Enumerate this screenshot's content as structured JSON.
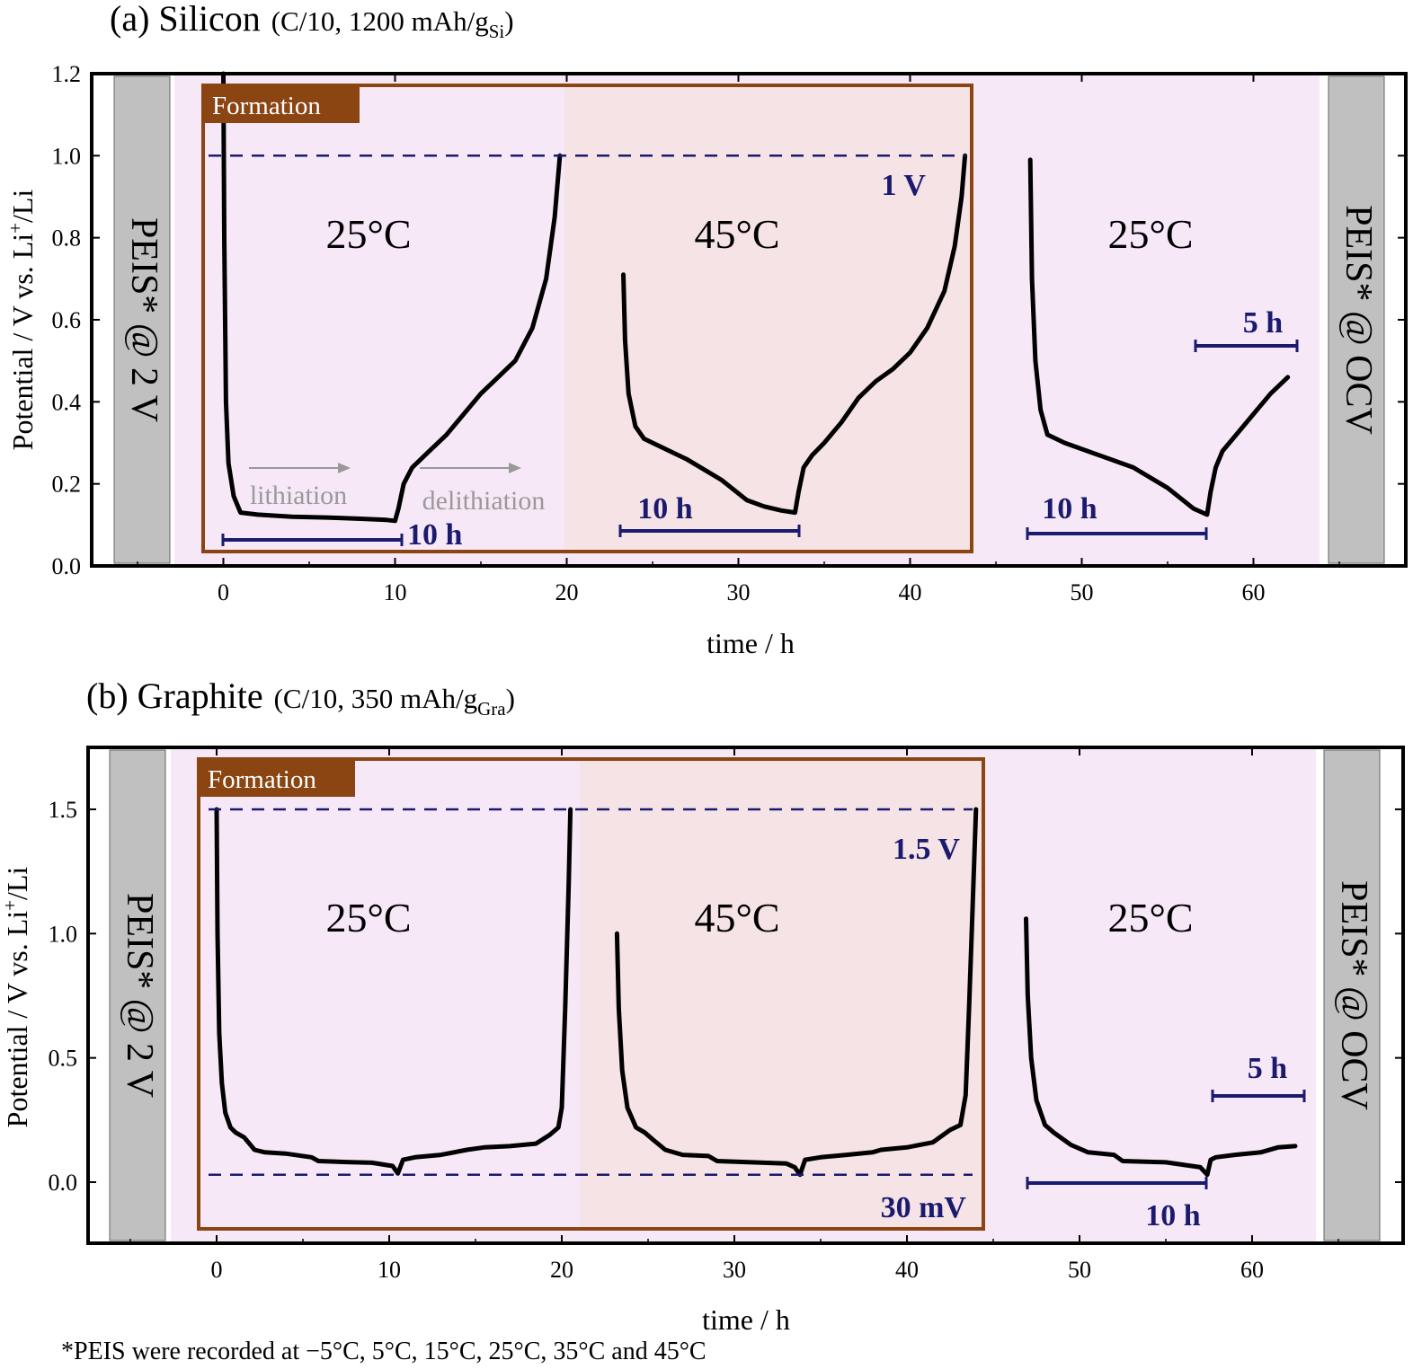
{
  "colors": {
    "pink_bg": "#f7e8f8",
    "formation_45_bg": "#f5e3e6",
    "gray_box": "#c0c0c0",
    "formation_frame": "#8b4513",
    "navy": "#1a1a6e",
    "curve": "#000000",
    "arrow": "#999999"
  },
  "footnote": "*PEIS were recorded at −5°C, 5°C, 15°C, 25°C, 35°C and 45°C",
  "panels": [
    {
      "title_main": "(a) Silicon",
      "title_sub_pre": "(C/10, 1200 mAh/g",
      "title_sub_sub": "Si",
      "title_sub_post": ")",
      "ylabel_pre": "Potential / V vs. Li",
      "ylabel_sup": "+",
      "ylabel_post": "/Li",
      "xlabel": "time / h",
      "xticks": [
        "0",
        "10",
        "20",
        "30",
        "40",
        "50",
        "60"
      ],
      "yticks": [
        "0.0",
        "0.2",
        "0.4",
        "0.6",
        "0.8",
        "1.0",
        "1.2"
      ],
      "peis_left": "PEIS* @ 2 V",
      "peis_right": "PEIS* @ OCV",
      "formation_label": "Formation",
      "temps": [
        "25°C",
        "45°C",
        "25°C"
      ],
      "limit_labels": [
        "1 V"
      ],
      "duration_labels": [
        "10 h",
        "10 h",
        "10 h",
        "5 h"
      ],
      "arrow_labels": [
        "lithiation",
        "delithiation"
      ]
    },
    {
      "title_main": "(b) Graphite",
      "title_sub_pre": "(C/10, 350 mAh/g",
      "title_sub_sub": "Gra",
      "title_sub_post": ")",
      "ylabel_pre": "Potential / V vs. Li",
      "ylabel_sup": "+",
      "ylabel_post": "/Li",
      "xlabel": "time / h",
      "xticks": [
        "0",
        "10",
        "20",
        "30",
        "40",
        "50",
        "60"
      ],
      "yticks": [
        "0.0",
        "0.5",
        "1.0",
        "1.5"
      ],
      "peis_left": "PEIS* @ 2 V",
      "peis_right": "PEIS* @ OCV",
      "formation_label": "Formation",
      "temps": [
        "25°C",
        "45°C",
        "25°C"
      ],
      "limit_labels": [
        "1.5 V",
        "30 mV"
      ],
      "duration_labels": [
        "10 h",
        "5 h"
      ]
    }
  ],
  "chart_data": [
    {
      "type": "line",
      "title": "(a) Silicon (C/10, 1200 mAh/gSi)",
      "xlabel": "time / h",
      "ylabel": "Potential / V vs. Li+/Li",
      "xlim": [
        -7,
        69
      ],
      "ylim": [
        0.0,
        1.2
      ],
      "cutoff_V": 1.0,
      "series": [
        {
          "segment": "25°C formation",
          "x": [
            0,
            0.05,
            0.15,
            0.3,
            0.6,
            1.0,
            2,
            4,
            6,
            8,
            9.5,
            10.0,
            10.2,
            10.5,
            11,
            12,
            13,
            14,
            15,
            16,
            17,
            18,
            18.8,
            19.3,
            19.6
          ],
          "y": [
            1.2,
            0.8,
            0.4,
            0.25,
            0.17,
            0.13,
            0.125,
            0.12,
            0.118,
            0.115,
            0.112,
            0.11,
            0.14,
            0.2,
            0.24,
            0.28,
            0.32,
            0.37,
            0.42,
            0.46,
            0.5,
            0.58,
            0.7,
            0.85,
            1.0
          ]
        },
        {
          "segment": "45°C formation",
          "x": [
            23.3,
            23.4,
            23.6,
            24,
            24.5,
            25,
            27,
            29,
            30.5,
            31.5,
            32.5,
            33.3,
            33.5,
            33.8,
            34.3,
            35,
            36,
            37,
            38,
            39,
            40,
            41,
            42,
            42.6,
            43.0,
            43.2
          ],
          "y": [
            0.71,
            0.55,
            0.42,
            0.34,
            0.31,
            0.3,
            0.26,
            0.21,
            0.16,
            0.145,
            0.135,
            0.13,
            0.18,
            0.24,
            0.27,
            0.3,
            0.35,
            0.41,
            0.45,
            0.48,
            0.52,
            0.58,
            0.67,
            0.78,
            0.9,
            1.0
          ]
        },
        {
          "segment": "25°C",
          "x": [
            47.0,
            47.1,
            47.3,
            47.6,
            48,
            49,
            51,
            53,
            55,
            56.5,
            57.3,
            57.5,
            57.8,
            58.2,
            59,
            60,
            61,
            62
          ],
          "y": [
            0.99,
            0.7,
            0.5,
            0.38,
            0.32,
            0.3,
            0.27,
            0.24,
            0.19,
            0.14,
            0.125,
            0.18,
            0.24,
            0.28,
            0.32,
            0.37,
            0.42,
            0.46
          ]
        }
      ]
    },
    {
      "type": "line",
      "title": "(b) Graphite (C/10, 350 mAh/gGra)",
      "xlabel": "time / h",
      "ylabel": "Potential / V vs. Li+/Li",
      "xlim": [
        -7,
        69
      ],
      "ylim": [
        -0.25,
        1.75
      ],
      "cutoffs_V": [
        1.5,
        0.03
      ],
      "series": [
        {
          "segment": "25°C formation",
          "x": [
            0,
            0.05,
            0.15,
            0.3,
            0.5,
            0.8,
            1.1,
            1.6,
            2.2,
            2.8,
            4,
            5.5,
            5.9,
            7,
            9,
            10.2,
            10.5,
            10.8,
            11.5,
            13,
            14.5,
            15.5,
            17,
            18.5,
            19.3,
            19.8,
            20.0,
            20.2,
            20.4,
            20.5
          ],
          "y": [
            1.5,
            1.0,
            0.6,
            0.4,
            0.28,
            0.22,
            0.2,
            0.18,
            0.13,
            0.12,
            0.115,
            0.1,
            0.085,
            0.082,
            0.078,
            0.065,
            0.035,
            0.09,
            0.1,
            0.11,
            0.13,
            0.14,
            0.145,
            0.155,
            0.19,
            0.22,
            0.3,
            0.7,
            1.2,
            1.5
          ]
        },
        {
          "segment": "45°C formation",
          "x": [
            23.2,
            23.3,
            23.5,
            23.8,
            24.3,
            24.8,
            25.3,
            26,
            27,
            28.5,
            29,
            31,
            33,
            33.5,
            33.8,
            34.1,
            35,
            36.5,
            38,
            38.5,
            40,
            41.5,
            42.5,
            43.1,
            43.4,
            43.6,
            43.8,
            44.0
          ],
          "y": [
            1.0,
            0.7,
            0.45,
            0.3,
            0.22,
            0.2,
            0.17,
            0.13,
            0.11,
            0.105,
            0.085,
            0.08,
            0.075,
            0.06,
            0.03,
            0.09,
            0.1,
            0.11,
            0.12,
            0.13,
            0.14,
            0.16,
            0.21,
            0.23,
            0.35,
            0.7,
            1.1,
            1.5
          ]
        },
        {
          "segment": "25°C",
          "x": [
            46.9,
            47.0,
            47.2,
            47.5,
            48,
            48.5,
            49.5,
            50.5,
            52,
            52.5,
            55,
            57,
            57.4,
            57.6,
            57.9,
            59,
            60.5,
            61.5,
            62.5
          ],
          "y": [
            1.06,
            0.75,
            0.5,
            0.33,
            0.23,
            0.2,
            0.15,
            0.12,
            0.11,
            0.085,
            0.08,
            0.06,
            0.03,
            0.09,
            0.1,
            0.11,
            0.12,
            0.14,
            0.145
          ]
        }
      ]
    }
  ]
}
